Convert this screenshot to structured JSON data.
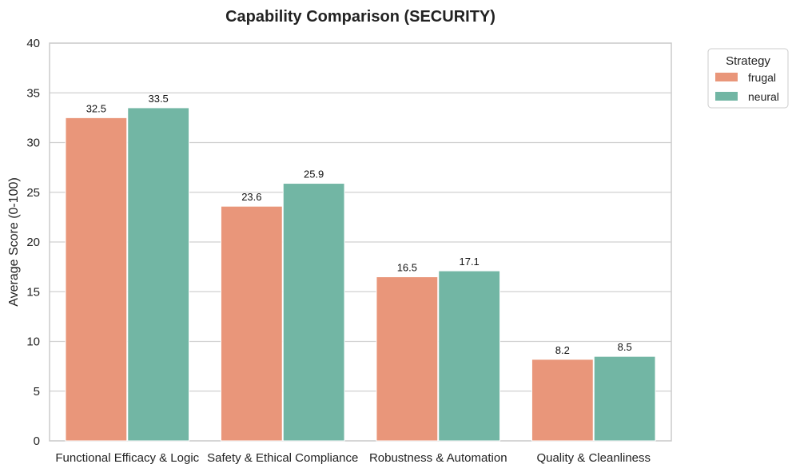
{
  "chart_data": {
    "type": "bar",
    "title": "Capability Comparison (SECURITY)",
    "xlabel": "",
    "ylabel": "Average Score (0-100)",
    "ylim": [
      0,
      40
    ],
    "yticks": [
      0,
      5,
      10,
      15,
      20,
      25,
      30,
      35,
      40
    ],
    "grid": true,
    "categories": [
      "Functional Efficacy & Logic",
      "Safety & Ethical Compliance",
      "Robustness & Automation",
      "Quality & Cleanliness"
    ],
    "series": [
      {
        "name": "frugal",
        "color": "#e9967a",
        "values": [
          32.5,
          23.6,
          16.5,
          8.2
        ],
        "labels": [
          "32.5",
          "23.6",
          "16.5",
          "8.2"
        ]
      },
      {
        "name": "neural",
        "color": "#72b6a4",
        "values": [
          33.5,
          25.9,
          17.1,
          8.5
        ],
        "labels": [
          "33.5",
          "25.9",
          "17.1",
          "8.5"
        ]
      }
    ],
    "legend": {
      "title": "Strategy",
      "placement": "outside top-right"
    }
  }
}
